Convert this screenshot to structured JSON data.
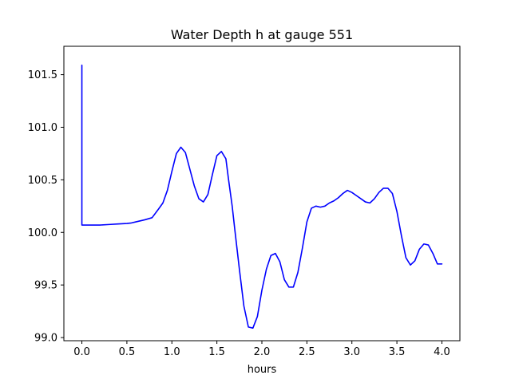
{
  "chart_data": {
    "type": "line",
    "title": "Water Depth h at gauge 551",
    "xlabel": "hours",
    "ylabel": "",
    "xlim": [
      -0.2,
      4.2
    ],
    "ylim": [
      98.97,
      101.77
    ],
    "x_ticks": [
      0.0,
      0.5,
      1.0,
      1.5,
      2.0,
      2.5,
      3.0,
      3.5,
      4.0
    ],
    "x_tick_labels": [
      "0.0",
      "0.5",
      "1.0",
      "1.5",
      "2.0",
      "2.5",
      "3.0",
      "3.5",
      "4.0"
    ],
    "y_ticks": [
      99.0,
      99.5,
      100.0,
      100.5,
      101.0,
      101.5
    ],
    "y_tick_labels": [
      "99.0",
      "99.5",
      "100.0",
      "100.5",
      "101.0",
      "101.5"
    ],
    "grid": false,
    "legend": "none",
    "series": [
      {
        "color": "#0000ff",
        "x": [
          0.0,
          0.0,
          0.0,
          0.1,
          0.2,
          0.3,
          0.4,
          0.5,
          0.55,
          0.6,
          0.7,
          0.78,
          0.85,
          0.9,
          0.95,
          1.0,
          1.05,
          1.1,
          1.15,
          1.2,
          1.25,
          1.3,
          1.35,
          1.4,
          1.45,
          1.5,
          1.55,
          1.6,
          1.63,
          1.67,
          1.7,
          1.75,
          1.8,
          1.85,
          1.9,
          1.95,
          2.0,
          2.05,
          2.1,
          2.15,
          2.2,
          2.25,
          2.3,
          2.35,
          2.4,
          2.45,
          2.5,
          2.55,
          2.6,
          2.65,
          2.7,
          2.75,
          2.8,
          2.85,
          2.9,
          2.95,
          3.0,
          3.05,
          3.1,
          3.15,
          3.2,
          3.25,
          3.3,
          3.35,
          3.4,
          3.45,
          3.5,
          3.55,
          3.6,
          3.65,
          3.7,
          3.75,
          3.8,
          3.85,
          3.9,
          3.95,
          4.0
        ],
        "y": [
          101.59,
          101.4,
          100.07,
          100.07,
          100.07,
          100.075,
          100.08,
          100.085,
          100.09,
          100.1,
          100.12,
          100.14,
          100.22,
          100.28,
          100.4,
          100.58,
          100.75,
          100.81,
          100.76,
          100.6,
          100.44,
          100.32,
          100.29,
          100.36,
          100.55,
          100.73,
          100.77,
          100.7,
          100.5,
          100.25,
          100.02,
          99.65,
          99.3,
          99.1,
          99.09,
          99.2,
          99.45,
          99.65,
          99.78,
          99.8,
          99.72,
          99.55,
          99.48,
          99.48,
          99.62,
          99.85,
          100.1,
          100.23,
          100.25,
          100.24,
          100.25,
          100.28,
          100.3,
          100.33,
          100.37,
          100.4,
          100.38,
          100.35,
          100.32,
          100.29,
          100.28,
          100.32,
          100.38,
          100.42,
          100.42,
          100.37,
          100.2,
          99.97,
          99.76,
          99.69,
          99.73,
          99.84,
          99.89,
          99.88,
          99.8,
          99.7,
          99.7
        ]
      }
    ]
  }
}
